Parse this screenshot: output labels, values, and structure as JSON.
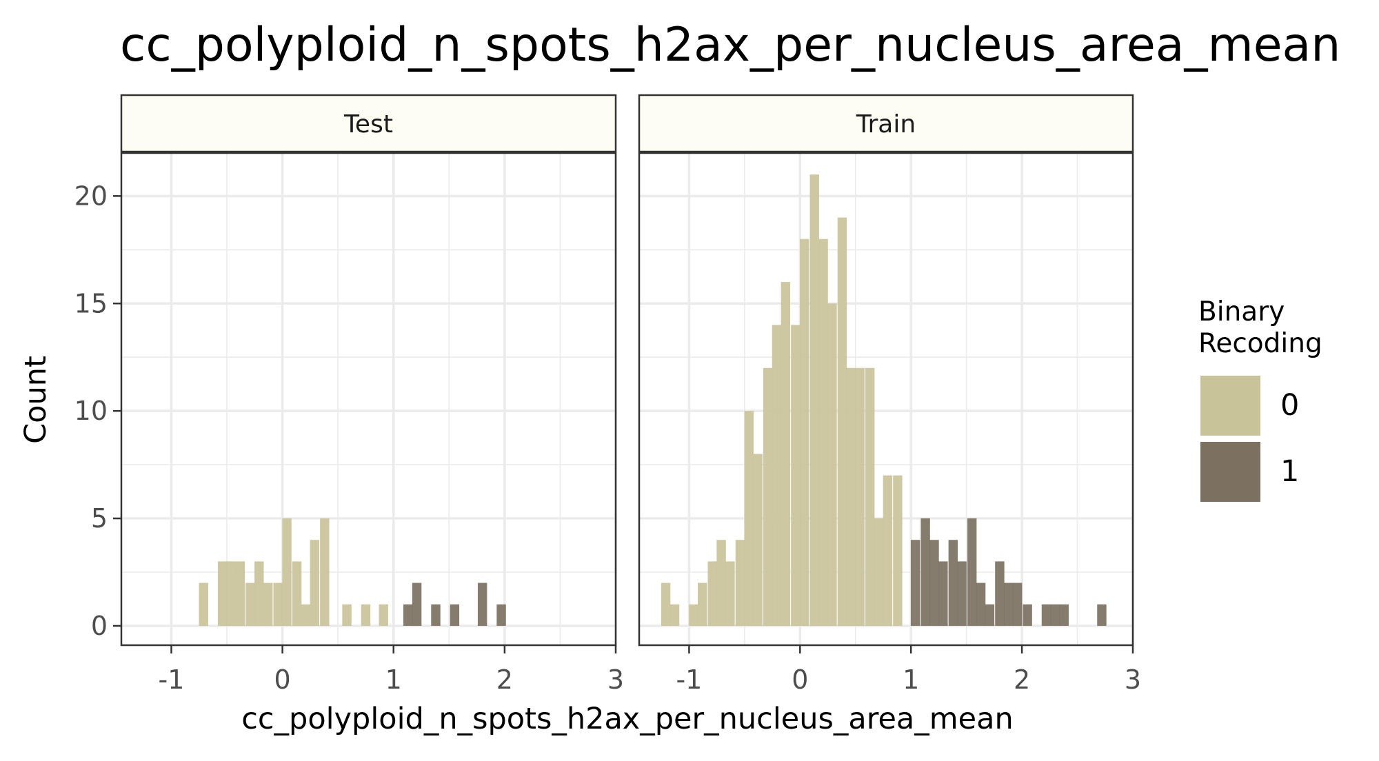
{
  "chart_data": {
    "type": "bar",
    "title": "cc_polyploid_n_spots_h2ax_per_nucleus_area_mean",
    "xlabel": "cc_polyploid_n_spots_h2ax_per_nucleus_area_mean",
    "ylabel": "Count",
    "xlim": [
      -1.45,
      3
    ],
    "ylim": [
      -0.9,
      22
    ],
    "xticks": [
      -1,
      0,
      1,
      2,
      3
    ],
    "yticks": [
      0,
      5,
      10,
      15,
      20
    ],
    "bin_width": 0.0834,
    "grid": true,
    "legend": {
      "title": [
        "Binary",
        "Recoding"
      ],
      "position": "right",
      "entries": [
        {
          "label": "0",
          "color": "#c9c39a"
        },
        {
          "label": "1",
          "color": "#7c7161"
        }
      ]
    },
    "colors": {
      "series_0": "#c9c39a",
      "series_1": "#7c7161",
      "strip_fill": "#fdfdf3",
      "grid": "#ebebeb",
      "panel_border": "#333333",
      "axis_text": "#4d4d4d"
    },
    "panels": [
      {
        "label": "Test",
        "series": [
          {
            "name": "0",
            "color": "#c9c39a",
            "bins": [
              {
                "x": -0.71,
                "count": 2
              },
              {
                "x": -0.54,
                "count": 3
              },
              {
                "x": -0.46,
                "count": 3
              },
              {
                "x": -0.38,
                "count": 3
              },
              {
                "x": -0.29,
                "count": 2
              },
              {
                "x": -0.21,
                "count": 3
              },
              {
                "x": -0.13,
                "count": 2
              },
              {
                "x": -0.04,
                "count": 2
              },
              {
                "x": 0.04,
                "count": 5
              },
              {
                "x": 0.13,
                "count": 3
              },
              {
                "x": 0.21,
                "count": 1
              },
              {
                "x": 0.29,
                "count": 4
              },
              {
                "x": 0.38,
                "count": 5
              },
              {
                "x": 0.58,
                "count": 1
              },
              {
                "x": 0.75,
                "count": 1
              },
              {
                "x": 0.91,
                "count": 1
              }
            ]
          },
          {
            "name": "1",
            "color": "#7c7161",
            "bins": [
              {
                "x": 1.13,
                "count": 1
              },
              {
                "x": 1.21,
                "count": 2
              },
              {
                "x": 1.38,
                "count": 1
              },
              {
                "x": 1.55,
                "count": 1
              },
              {
                "x": 1.8,
                "count": 2
              },
              {
                "x": 1.97,
                "count": 1
              }
            ]
          }
        ]
      },
      {
        "label": "Train",
        "series": [
          {
            "name": "0",
            "color": "#c9c39a",
            "bins": [
              {
                "x": -1.21,
                "count": 2
              },
              {
                "x": -1.13,
                "count": 1
              },
              {
                "x": -0.96,
                "count": 1
              },
              {
                "x": -0.88,
                "count": 2
              },
              {
                "x": -0.79,
                "count": 3
              },
              {
                "x": -0.71,
                "count": 4
              },
              {
                "x": -0.63,
                "count": 3
              },
              {
                "x": -0.54,
                "count": 4
              },
              {
                "x": -0.46,
                "count": 10
              },
              {
                "x": -0.38,
                "count": 8
              },
              {
                "x": -0.29,
                "count": 12
              },
              {
                "x": -0.21,
                "count": 14
              },
              {
                "x": -0.13,
                "count": 16
              },
              {
                "x": -0.04,
                "count": 14
              },
              {
                "x": 0.04,
                "count": 18
              },
              {
                "x": 0.13,
                "count": 21
              },
              {
                "x": 0.21,
                "count": 18
              },
              {
                "x": 0.29,
                "count": 15
              },
              {
                "x": 0.38,
                "count": 19
              },
              {
                "x": 0.46,
                "count": 12
              },
              {
                "x": 0.54,
                "count": 12
              },
              {
                "x": 0.63,
                "count": 12
              },
              {
                "x": 0.71,
                "count": 5
              },
              {
                "x": 0.79,
                "count": 7
              },
              {
                "x": 0.88,
                "count": 7
              }
            ]
          },
          {
            "name": "1",
            "color": "#7c7161",
            "bins": [
              {
                "x": 1.04,
                "count": 4
              },
              {
                "x": 1.13,
                "count": 5
              },
              {
                "x": 1.21,
                "count": 4
              },
              {
                "x": 1.29,
                "count": 3
              },
              {
                "x": 1.38,
                "count": 4
              },
              {
                "x": 1.46,
                "count": 3
              },
              {
                "x": 1.55,
                "count": 5
              },
              {
                "x": 1.63,
                "count": 2
              },
              {
                "x": 1.71,
                "count": 1
              },
              {
                "x": 1.8,
                "count": 3
              },
              {
                "x": 1.88,
                "count": 2
              },
              {
                "x": 1.96,
                "count": 2
              },
              {
                "x": 2.05,
                "count": 1
              },
              {
                "x": 2.22,
                "count": 1
              },
              {
                "x": 2.3,
                "count": 1
              },
              {
                "x": 2.38,
                "count": 1
              },
              {
                "x": 2.72,
                "count": 1
              }
            ]
          }
        ]
      }
    ]
  }
}
